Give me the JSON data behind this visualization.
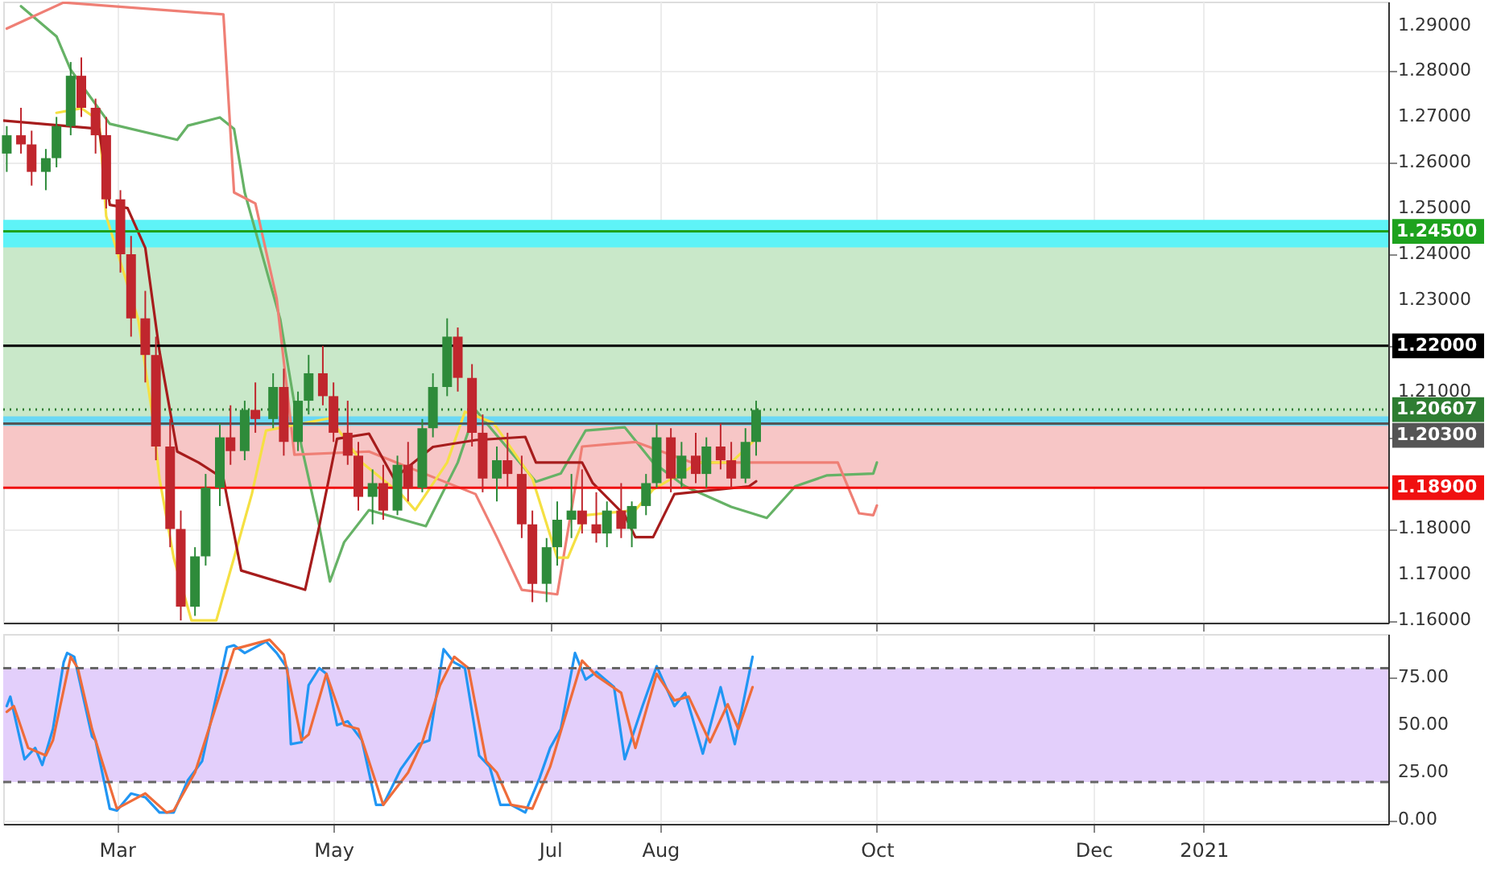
{
  "chart_data": [
    {
      "type": "candlestick",
      "x": [
        "2020-01-30",
        "2020-02-03",
        "2020-02-06",
        "2020-02-10",
        "2020-02-13",
        "2020-02-17",
        "2020-02-20",
        "2020-02-24",
        "2020-02-27",
        "2020-03-02",
        "2020-03-05",
        "2020-03-09",
        "2020-03-12",
        "2020-03-16",
        "2020-03-19",
        "2020-03-23",
        "2020-03-26",
        "2020-03-30",
        "2020-04-02",
        "2020-04-06",
        "2020-04-09",
        "2020-04-14",
        "2020-04-17",
        "2020-04-21",
        "2020-04-24",
        "2020-04-28",
        "2020-05-01",
        "2020-05-05",
        "2020-05-08",
        "2020-05-12",
        "2020-05-15",
        "2020-05-19",
        "2020-05-22",
        "2020-05-26",
        "2020-05-29",
        "2020-06-02",
        "2020-06-05",
        "2020-06-09",
        "2020-06-12",
        "2020-06-16",
        "2020-06-19",
        "2020-06-23",
        "2020-06-26",
        "2020-06-30",
        "2020-07-03",
        "2020-07-07",
        "2020-07-10",
        "2020-07-14",
        "2020-07-17",
        "2020-07-21",
        "2020-07-24",
        "2020-07-28",
        "2020-07-31",
        "2020-08-04",
        "2020-08-07",
        "2020-08-11",
        "2020-08-14",
        "2020-08-18",
        "2020-08-21",
        "2020-08-25",
        "2020-08-28"
      ],
      "ohlc": [
        [
          1.262,
          1.268,
          1.258,
          1.266
        ],
        [
          1.266,
          1.272,
          1.262,
          1.264
        ],
        [
          1.264,
          1.267,
          1.255,
          1.258
        ],
        [
          1.258,
          1.263,
          1.254,
          1.261
        ],
        [
          1.261,
          1.27,
          1.259,
          1.268
        ],
        [
          1.268,
          1.282,
          1.266,
          1.279
        ],
        [
          1.279,
          1.283,
          1.27,
          1.272
        ],
        [
          1.272,
          1.274,
          1.262,
          1.266
        ],
        [
          1.266,
          1.27,
          1.25,
          1.252
        ],
        [
          1.252,
          1.254,
          1.236,
          1.24
        ],
        [
          1.24,
          1.244,
          1.222,
          1.226
        ],
        [
          1.226,
          1.232,
          1.212,
          1.218
        ],
        [
          1.218,
          1.222,
          1.195,
          1.198
        ],
        [
          1.198,
          1.204,
          1.176,
          1.18
        ],
        [
          1.18,
          1.184,
          1.16,
          1.163
        ],
        [
          1.163,
          1.176,
          1.161,
          1.174
        ],
        [
          1.174,
          1.192,
          1.172,
          1.189
        ],
        [
          1.189,
          1.203,
          1.185,
          1.2
        ],
        [
          1.2,
          1.207,
          1.194,
          1.197
        ],
        [
          1.197,
          1.208,
          1.195,
          1.206
        ],
        [
          1.206,
          1.212,
          1.201,
          1.204
        ],
        [
          1.204,
          1.214,
          1.202,
          1.211
        ],
        [
          1.211,
          1.215,
          1.196,
          1.199
        ],
        [
          1.199,
          1.21,
          1.197,
          1.208
        ],
        [
          1.208,
          1.218,
          1.205,
          1.214
        ],
        [
          1.214,
          1.22,
          1.207,
          1.209
        ],
        [
          1.209,
          1.212,
          1.199,
          1.201
        ],
        [
          1.201,
          1.208,
          1.194,
          1.196
        ],
        [
          1.196,
          1.199,
          1.184,
          1.187
        ],
        [
          1.187,
          1.193,
          1.181,
          1.19
        ],
        [
          1.19,
          1.194,
          1.182,
          1.184
        ],
        [
          1.184,
          1.196,
          1.183,
          1.194
        ],
        [
          1.194,
          1.199,
          1.186,
          1.189
        ],
        [
          1.189,
          1.204,
          1.188,
          1.202
        ],
        [
          1.202,
          1.214,
          1.2,
          1.211
        ],
        [
          1.211,
          1.226,
          1.209,
          1.222
        ],
        [
          1.222,
          1.224,
          1.21,
          1.213
        ],
        [
          1.213,
          1.216,
          1.198,
          1.201
        ],
        [
          1.201,
          1.205,
          1.188,
          1.191
        ],
        [
          1.191,
          1.198,
          1.186,
          1.195
        ],
        [
          1.195,
          1.201,
          1.189,
          1.192
        ],
        [
          1.192,
          1.196,
          1.178,
          1.181
        ],
        [
          1.181,
          1.184,
          1.164,
          1.168
        ],
        [
          1.168,
          1.178,
          1.164,
          1.176
        ],
        [
          1.176,
          1.186,
          1.172,
          1.182
        ],
        [
          1.182,
          1.192,
          1.178,
          1.184
        ],
        [
          1.184,
          1.193,
          1.179,
          1.181
        ],
        [
          1.181,
          1.188,
          1.177,
          1.179
        ],
        [
          1.179,
          1.186,
          1.176,
          1.184
        ],
        [
          1.184,
          1.19,
          1.178,
          1.18
        ],
        [
          1.18,
          1.186,
          1.176,
          1.185
        ],
        [
          1.185,
          1.192,
          1.183,
          1.19
        ],
        [
          1.19,
          1.203,
          1.189,
          1.2
        ],
        [
          1.2,
          1.202,
          1.188,
          1.191
        ],
        [
          1.191,
          1.199,
          1.189,
          1.196
        ],
        [
          1.196,
          1.201,
          1.19,
          1.192
        ],
        [
          1.192,
          1.2,
          1.189,
          1.198
        ],
        [
          1.198,
          1.203,
          1.193,
          1.195
        ],
        [
          1.195,
          1.199,
          1.189,
          1.191
        ],
        [
          1.191,
          1.202,
          1.19,
          1.199
        ],
        [
          1.199,
          1.208,
          1.196,
          1.206
        ]
      ],
      "colors": [
        "#2e8b3a",
        "#c0262d",
        "#c0262d",
        "#2e8b3a",
        "#2e8b3a",
        "#2e8b3a",
        "#c0262d",
        "#c0262d",
        "#c0262d",
        "#c0262d",
        "#c0262d",
        "#c0262d",
        "#c0262d",
        "#c0262d",
        "#c0262d",
        "#2e8b3a",
        "#2e8b3a",
        "#2e8b3a",
        "#c0262d",
        "#2e8b3a",
        "#c0262d",
        "#2e8b3a",
        "#c0262d",
        "#2e8b3a",
        "#2e8b3a",
        "#c0262d",
        "#c0262d",
        "#c0262d",
        "#c0262d",
        "#2e8b3a",
        "#c0262d",
        "#2e8b3a",
        "#c0262d",
        "#2e8b3a",
        "#2e8b3a",
        "#2e8b3a",
        "#c0262d",
        "#c0262d",
        "#c0262d",
        "#2e8b3a",
        "#c0262d",
        "#c0262d",
        "#c0262d",
        "#2e8b3a",
        "#2e8b3a",
        "#2e8b3a",
        "#c0262d",
        "#c0262d",
        "#2e8b3a",
        "#c0262d",
        "#2e8b3a",
        "#2e8b3a",
        "#2e8b3a",
        "#c0262d",
        "#2e8b3a",
        "#c0262d",
        "#2e8b3a",
        "#c0262d",
        "#c0262d",
        "#2e8b3a",
        "#2e8b3a"
      ],
      "series": [
        {
          "type": "line",
          "color": "#66b266",
          "x": [
            "2020-02-03",
            "2020-02-13",
            "2020-02-17",
            "2020-02-28",
            "2020-03-18",
            "2020-03-21",
            "2020-03-30",
            "2020-04-03",
            "2020-04-06",
            "2020-04-16",
            "2020-04-22",
            "2020-04-27",
            "2020-04-30",
            "2020-05-04",
            "2020-05-11",
            "2020-05-27",
            "2020-06-05",
            "2020-06-10",
            "2020-06-16",
            "2020-06-27",
            "2020-07-04",
            "2020-07-11",
            "2020-07-22",
            "2020-07-30",
            "2020-08-08",
            "2020-08-21",
            "2020-08-31",
            "2020-09-08",
            "2020-09-17",
            "2020-09-30",
            "2020-10-01"
          ],
          "values": [
            1.2942,
            1.2876,
            1.2803,
            1.2685,
            1.265,
            1.2681,
            1.2699,
            1.2674,
            1.2535,
            1.2258,
            1.198,
            1.1806,
            1.1685,
            1.1771,
            1.1841,
            1.1806,
            1.1945,
            1.206,
            1.2004,
            1.1903,
            1.1921,
            1.2015,
            1.2022,
            1.1945,
            1.1893,
            1.1848,
            1.1824,
            1.1893,
            1.1917,
            1.1921,
            1.1945
          ]
        },
        {
          "type": "line",
          "color": "#ef7f75",
          "x": [
            "2020-01-30",
            "2020-02-15",
            "2020-03-31",
            "2020-04-03",
            "2020-04-09",
            "2020-04-15",
            "2020-04-20",
            "2020-05-11",
            "2020-06-10",
            "2020-06-16",
            "2020-06-23",
            "2020-07-03",
            "2020-07-10",
            "2020-07-25",
            "2020-08-10",
            "2020-09-20",
            "2020-09-26",
            "2020-09-30",
            "2020-10-01"
          ],
          "values": [
            1.2893,
            1.295,
            1.2924,
            1.2535,
            1.2511,
            1.2303,
            1.1962,
            1.1969,
            1.1876,
            1.1782,
            1.1667,
            1.1657,
            1.198,
            1.199,
            1.1945,
            1.1945,
            1.1834,
            1.183,
            1.1851
          ]
        },
        {
          "type": "line",
          "color": "#f5e043",
          "x": [
            "2020-02-13",
            "2020-02-20",
            "2020-02-25",
            "2020-02-27",
            "2020-03-07",
            "2020-03-11",
            "2020-03-13",
            "2020-03-17",
            "2020-03-22",
            "2020-03-29",
            "2020-04-03",
            "2020-04-08",
            "2020-04-12",
            "2020-04-30",
            "2020-05-09",
            "2020-05-20",
            "2020-05-24",
            "2020-06-02",
            "2020-06-07",
            "2020-06-15",
            "2020-06-26",
            "2020-07-03",
            "2020-07-06",
            "2020-07-11",
            "2020-07-25",
            "2020-07-30",
            "2020-08-12",
            "2020-08-21",
            "2020-08-27"
          ],
          "values": [
            1.2709,
            1.2719,
            1.2692,
            1.2483,
            1.2258,
            1.2049,
            1.191,
            1.1737,
            1.16,
            1.16,
            1.1737,
            1.1876,
            1.2015,
            1.2042,
            1.1945,
            1.1876,
            1.1841,
            1.1945,
            1.2056,
            1.2032,
            1.191,
            1.1737,
            1.1737,
            1.183,
            1.1841,
            1.1886,
            1.1945,
            1.1945,
            1.199
          ]
        },
        {
          "type": "line",
          "color": "#a61c1c",
          "x": [
            "2020-01-29",
            "2020-02-25",
            "2020-02-28",
            "2020-03-04",
            "2020-03-09",
            "2020-03-13",
            "2020-03-18",
            "2020-03-24",
            "2020-03-31",
            "2020-04-05",
            "2020-04-23",
            "2020-04-27",
            "2020-05-02",
            "2020-05-11",
            "2020-05-18",
            "2020-05-29",
            "2020-06-10",
            "2020-06-24",
            "2020-06-27",
            "2020-07-10",
            "2020-07-13",
            "2020-07-22",
            "2020-07-25",
            "2020-07-30",
            "2020-08-05",
            "2020-08-26",
            "2020-08-28"
          ],
          "values": [
            1.2692,
            1.2674,
            1.2508,
            1.2501,
            1.2414,
            1.2188,
            1.1969,
            1.1945,
            1.191,
            1.1709,
            1.1667,
            1.1806,
            1.1997,
            1.2008,
            1.191,
            1.1979,
            1.1994,
            1.2001,
            1.1945,
            1.1945,
            1.19,
            1.183,
            1.1782,
            1.1782,
            1.1876,
            1.1893,
            1.1904
          ]
        }
      ],
      "bands": [
        {
          "axis": "y",
          "from": 1.203,
          "to": 1.245,
          "color": "#c9e8c9"
        },
        {
          "axis": "y",
          "from": 1.189,
          "to": 1.203,
          "color": "#f7c6c6"
        },
        {
          "axis": "y",
          "from": 1.2415,
          "to": 1.2475,
          "color": "#5ef3f7"
        },
        {
          "axis": "y",
          "from": 1.2025,
          "to": 1.2046,
          "color": "#6ad8f5"
        }
      ],
      "ref_lines": [
        {
          "axis": "y",
          "value": 1.245,
          "label": "1.24500",
          "color": "#1ea21e",
          "line_style": "solid"
        },
        {
          "axis": "y",
          "value": 1.22,
          "label": "1.22000",
          "color": "#000000",
          "line_style": "solid"
        },
        {
          "axis": "y",
          "value": 1.20607,
          "label": "1.20607",
          "color": "#2e7d32",
          "line_style": "dotted"
        },
        {
          "axis": "y",
          "value": 1.203,
          "label": "1.20300",
          "color": "#555555",
          "line_style": "solid"
        },
        {
          "axis": "y",
          "value": 1.189,
          "label": "1.18900",
          "color": "#f01010",
          "line_style": "solid"
        }
      ],
      "xlim": [
        "2020-01-29",
        "2021-02-22"
      ],
      "xticks": [
        {
          "value": "2020-03-01",
          "label": null
        },
        {
          "value": "2020-05-01",
          "label": null
        },
        {
          "value": "2020-07-01",
          "label": null
        },
        {
          "value": "2020-08-01",
          "label": null
        },
        {
          "value": "2020-10-01",
          "label": null
        },
        {
          "value": "2020-12-01",
          "label": null
        },
        {
          "value": "2021-01-01",
          "label": null
        }
      ],
      "ylim": [
        1.1595,
        1.2952
      ],
      "yticks": [
        {
          "value": 1.16,
          "label": "1.16000"
        },
        {
          "value": 1.17,
          "label": "1.17000"
        },
        {
          "value": 1.18,
          "label": "1.18000"
        },
        {
          "value": 1.19,
          "label": null
        },
        {
          "value": 1.2,
          "label": null
        },
        {
          "value": 1.21,
          "label": "1.21000"
        },
        {
          "value": 1.22,
          "label": null
        },
        {
          "value": 1.23,
          "label": "1.23000"
        },
        {
          "value": 1.24,
          "label": "1.24000"
        },
        {
          "value": 1.25,
          "label": "1.25000"
        },
        {
          "value": 1.26,
          "label": "1.26000"
        },
        {
          "value": 1.27,
          "label": "1.27000"
        },
        {
          "value": 1.28,
          "label": "1.28000"
        },
        {
          "value": 1.29,
          "label": "1.29000"
        }
      ],
      "grid": true,
      "tick_labels": "y"
    },
    {
      "type": "line",
      "series": [
        {
          "color": "#2196f3",
          "x": [
            "2020-01-30",
            "2020-01-31",
            "2020-02-04",
            "2020-02-07",
            "2020-02-09",
            "2020-02-12",
            "2020-02-15",
            "2020-02-16",
            "2020-02-18",
            "2020-02-23",
            "2020-02-24",
            "2020-02-28",
            "2020-03-01",
            "2020-03-05",
            "2020-03-09",
            "2020-03-13",
            "2020-03-17",
            "2020-03-21",
            "2020-03-25",
            "2020-04-01",
            "2020-04-03",
            "2020-04-06",
            "2020-04-12",
            "2020-04-15",
            "2020-04-18",
            "2020-04-19",
            "2020-04-22",
            "2020-04-24",
            "2020-04-27",
            "2020-04-29",
            "2020-05-02",
            "2020-05-05",
            "2020-05-09",
            "2020-05-13",
            "2020-05-15",
            "2020-05-20",
            "2020-05-25",
            "2020-05-28",
            "2020-06-01",
            "2020-06-04",
            "2020-06-07",
            "2020-06-11",
            "2020-06-14",
            "2020-06-17",
            "2020-06-20",
            "2020-06-24",
            "2020-06-28",
            "2020-07-01",
            "2020-07-04",
            "2020-07-08",
            "2020-07-11",
            "2020-07-14",
            "2020-07-19",
            "2020-07-22",
            "2020-07-27",
            "2020-07-31",
            "2020-08-05",
            "2020-08-08",
            "2020-08-13",
            "2020-08-18",
            "2020-08-22",
            "2020-08-27"
          ],
          "values": [
            60,
            65,
            32,
            38,
            29,
            48,
            83,
            88,
            86,
            44,
            42,
            6,
            5,
            14,
            12,
            4,
            4,
            21,
            31,
            91,
            92,
            88,
            94,
            88,
            80,
            40,
            41,
            71,
            80,
            77,
            50,
            52,
            42,
            8,
            8,
            27,
            40,
            42,
            90,
            83,
            80,
            34,
            28,
            8,
            8,
            4,
            22,
            38,
            48,
            88,
            74,
            78,
            70,
            32,
            60,
            81,
            60,
            67,
            35,
            70,
            40,
            86
          ]
        },
        {
          "color": "#ef6c3a",
          "x": [
            "2020-01-30",
            "2020-02-01",
            "2020-02-05",
            "2020-02-10",
            "2020-02-12",
            "2020-02-17",
            "2020-02-19",
            "2020-02-23",
            "2020-03-01",
            "2020-03-07",
            "2020-03-09",
            "2020-03-15",
            "2020-03-17",
            "2020-03-23",
            "2020-04-03",
            "2020-04-13",
            "2020-04-17",
            "2020-04-22",
            "2020-04-24",
            "2020-04-29",
            "2020-05-04",
            "2020-05-08",
            "2020-05-15",
            "2020-05-22",
            "2020-05-26",
            "2020-05-31",
            "2020-06-04",
            "2020-06-08",
            "2020-06-13",
            "2020-06-16",
            "2020-06-20",
            "2020-06-26",
            "2020-07-01",
            "2020-07-10",
            "2020-07-14",
            "2020-07-21",
            "2020-07-25",
            "2020-07-31",
            "2020-08-05",
            "2020-08-09",
            "2020-08-15",
            "2020-08-20",
            "2020-08-23",
            "2020-08-27"
          ],
          "values": [
            57,
            60,
            38,
            34,
            42,
            86,
            80,
            48,
            6,
            12,
            14,
            4,
            5,
            25,
            90,
            95,
            87,
            42,
            45,
            77,
            50,
            48,
            8,
            25,
            41,
            71,
            86,
            80,
            31,
            25,
            8,
            6,
            28,
            84,
            76,
            67,
            38,
            77,
            63,
            65,
            41,
            61,
            48,
            70
          ]
        }
      ],
      "bands": [
        {
          "axis": "y",
          "from": 20,
          "to": 80,
          "color": "#e3cffb"
        }
      ],
      "ref_lines": [
        {
          "axis": "y",
          "value": 80,
          "color": "#666666",
          "line_style": "dashed"
        },
        {
          "axis": "y",
          "value": 20,
          "color": "#666666",
          "line_style": "dashed"
        }
      ],
      "xlim": [
        "2020-01-29",
        "2021-02-22"
      ],
      "xticks": [
        {
          "value": "2020-03-01",
          "label": "Mar"
        },
        {
          "value": "2020-05-01",
          "label": "May"
        },
        {
          "value": "2020-07-01",
          "label": "Jul"
        },
        {
          "value": "2020-08-01",
          "label": "Aug"
        },
        {
          "value": "2020-10-01",
          "label": "Oct"
        },
        {
          "value": "2020-12-01",
          "label": "Dec"
        },
        {
          "value": "2021-01-01",
          "label": "2021"
        }
      ],
      "ylim": [
        -2,
        98
      ],
      "yticks": [
        {
          "value": 0,
          "label": "0.00"
        },
        {
          "value": 25,
          "label": "25.00"
        },
        {
          "value": 50,
          "label": "50.00"
        },
        {
          "value": 75,
          "label": "75.00"
        }
      ],
      "grid": true
    }
  ]
}
